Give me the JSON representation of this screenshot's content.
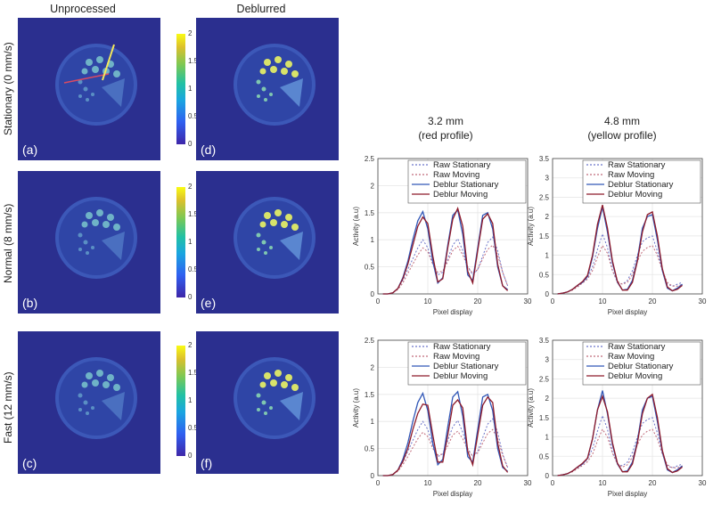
{
  "headers": {
    "unprocessed": "Unprocessed",
    "deblurred": "Deblurred",
    "col1": [
      "3.2 mm",
      "(red profile)"
    ],
    "col2": [
      "4.8 mm",
      "(yellow profile)"
    ]
  },
  "row_labels": [
    "Stationary  (0 mm/s)",
    "Normal (8 mm/s)",
    "Fast (12 mm/s)"
  ],
  "panel_letters": [
    "(a)",
    "(b)",
    "(c)",
    "(d)",
    "(e)",
    "(f)"
  ],
  "colorbar": {
    "ticks": [
      "2",
      "1.5",
      "1",
      "0.5",
      "0"
    ],
    "colors": [
      "#3e26a8",
      "#2f5ff0",
      "#1aa6e0",
      "#21c1a4",
      "#7cc854",
      "#dcc02c",
      "#f9fb14"
    ]
  },
  "series_styles": [
    {
      "name": "Raw Stationary",
      "color": "#6b74c9",
      "dash": "2,2"
    },
    {
      "name": "Raw Moving",
      "color": "#c06a7a",
      "dash": "2,2"
    },
    {
      "name": "Deblur Stationary",
      "color": "#3157b7",
      "dash": ""
    },
    {
      "name": "Deblur Moving",
      "color": "#8e1a2a",
      "dash": ""
    }
  ],
  "chart_data": [
    {
      "type": "line",
      "xlabel": "Pixel display",
      "ylabel": "Activity (a.u)",
      "xlim": [
        0,
        30
      ],
      "ylim": [
        0,
        2.5
      ],
      "xticks": [
        "0",
        "10",
        "20",
        "30"
      ],
      "yticks": [
        "0",
        "0.5",
        "1",
        "1.5",
        "2",
        "2.5"
      ],
      "x": [
        1,
        2,
        3,
        4,
        5,
        6,
        7,
        8,
        9,
        10,
        11,
        12,
        13,
        14,
        15,
        16,
        17,
        18,
        19,
        20,
        21,
        22,
        23,
        24,
        25,
        26
      ],
      "series": [
        {
          "name": "Raw Stationary",
          "values": [
            0,
            0,
            0.02,
            0.1,
            0.25,
            0.45,
            0.65,
            0.85,
            1.0,
            0.85,
            0.55,
            0.35,
            0.4,
            0.65,
            0.9,
            1.02,
            0.8,
            0.5,
            0.35,
            0.45,
            0.7,
            0.95,
            1.05,
            0.8,
            0.4,
            0.15
          ]
        },
        {
          "name": "Raw Moving",
          "values": [
            0,
            0,
            0.02,
            0.08,
            0.2,
            0.38,
            0.55,
            0.72,
            0.85,
            0.78,
            0.55,
            0.4,
            0.42,
            0.6,
            0.8,
            0.88,
            0.72,
            0.5,
            0.38,
            0.45,
            0.65,
            0.82,
            0.9,
            0.72,
            0.4,
            0.15
          ]
        },
        {
          "name": "Deblur Stationary",
          "values": [
            0,
            0,
            0.02,
            0.1,
            0.3,
            0.6,
            1.0,
            1.35,
            1.52,
            1.2,
            0.6,
            0.2,
            0.3,
            0.9,
            1.45,
            1.55,
            1.1,
            0.35,
            0.25,
            0.85,
            1.45,
            1.5,
            1.2,
            0.5,
            0.15,
            0.08
          ]
        },
        {
          "name": "Deblur Moving",
          "values": [
            0,
            0,
            0.02,
            0.1,
            0.28,
            0.55,
            0.9,
            1.25,
            1.42,
            1.3,
            0.7,
            0.22,
            0.28,
            0.85,
            1.38,
            1.58,
            1.25,
            0.42,
            0.2,
            0.8,
            1.38,
            1.48,
            1.3,
            0.55,
            0.15,
            0.06
          ]
        }
      ]
    },
    {
      "type": "line",
      "xlabel": "Pixel display",
      "ylabel": "Activity (a.u)",
      "xlim": [
        0,
        30
      ],
      "ylim": [
        0,
        3.5
      ],
      "xticks": [
        "0",
        "10",
        "20",
        "30"
      ],
      "yticks": [
        "0",
        "0.5",
        "1",
        "1.5",
        "2",
        "2.5",
        "3",
        "3.5"
      ],
      "x": [
        1,
        2,
        3,
        4,
        5,
        6,
        7,
        8,
        9,
        10,
        11,
        12,
        13,
        14,
        15,
        16,
        17,
        18,
        19,
        20,
        21,
        22,
        23,
        24,
        25,
        26
      ],
      "series": [
        {
          "name": "Raw Stationary",
          "values": [
            0,
            0.02,
            0.05,
            0.12,
            0.2,
            0.3,
            0.42,
            0.7,
            1.15,
            1.55,
            1.2,
            0.6,
            0.3,
            0.25,
            0.35,
            0.6,
            1.0,
            1.35,
            1.45,
            1.5,
            1.1,
            0.6,
            0.25,
            0.2,
            0.25,
            0.3
          ]
        },
        {
          "name": "Raw Moving",
          "values": [
            0,
            0.02,
            0.05,
            0.1,
            0.18,
            0.28,
            0.38,
            0.6,
            0.95,
            1.25,
            1.05,
            0.6,
            0.32,
            0.25,
            0.3,
            0.5,
            0.85,
            1.1,
            1.2,
            1.25,
            1.0,
            0.6,
            0.3,
            0.2,
            0.2,
            0.25
          ]
        },
        {
          "name": "Deblur Stationary",
          "values": [
            0,
            0.02,
            0.05,
            0.12,
            0.22,
            0.3,
            0.45,
            0.95,
            1.7,
            2.25,
            1.6,
            0.8,
            0.3,
            0.1,
            0.12,
            0.35,
            0.9,
            1.7,
            2.0,
            2.05,
            1.4,
            0.6,
            0.15,
            0.08,
            0.15,
            0.25
          ]
        },
        {
          "name": "Deblur Moving",
          "values": [
            0,
            0.02,
            0.05,
            0.12,
            0.22,
            0.32,
            0.48,
            1.0,
            1.8,
            2.3,
            1.7,
            0.85,
            0.32,
            0.1,
            0.1,
            0.3,
            0.85,
            1.6,
            2.05,
            2.12,
            1.5,
            0.65,
            0.18,
            0.08,
            0.12,
            0.22
          ]
        }
      ]
    },
    {
      "type": "line",
      "xlabel": "Pixel display",
      "ylabel": "Activity (a.u)",
      "xlim": [
        0,
        30
      ],
      "ylim": [
        0,
        2.5
      ],
      "xticks": [
        "0",
        "10",
        "20",
        "30"
      ],
      "yticks": [
        "0",
        "0.5",
        "1",
        "1.5",
        "2",
        "2.5"
      ],
      "x": [
        1,
        2,
        3,
        4,
        5,
        6,
        7,
        8,
        9,
        10,
        11,
        12,
        13,
        14,
        15,
        16,
        17,
        18,
        19,
        20,
        21,
        22,
        23,
        24,
        25,
        26
      ],
      "series": [
        {
          "name": "Raw Stationary",
          "values": [
            0,
            0,
            0.02,
            0.1,
            0.25,
            0.45,
            0.65,
            0.85,
            1.0,
            0.85,
            0.55,
            0.35,
            0.4,
            0.65,
            0.9,
            1.02,
            0.8,
            0.5,
            0.35,
            0.45,
            0.7,
            0.95,
            1.05,
            0.8,
            0.4,
            0.15
          ]
        },
        {
          "name": "Raw Moving",
          "values": [
            0,
            0,
            0.02,
            0.08,
            0.2,
            0.35,
            0.52,
            0.68,
            0.8,
            0.72,
            0.5,
            0.38,
            0.4,
            0.55,
            0.75,
            0.82,
            0.68,
            0.48,
            0.36,
            0.42,
            0.6,
            0.78,
            0.85,
            0.68,
            0.38,
            0.14
          ]
        },
        {
          "name": "Deblur Stationary",
          "values": [
            0,
            0,
            0.02,
            0.1,
            0.3,
            0.6,
            1.0,
            1.35,
            1.52,
            1.2,
            0.6,
            0.2,
            0.3,
            0.9,
            1.45,
            1.55,
            1.1,
            0.35,
            0.25,
            0.85,
            1.45,
            1.5,
            1.2,
            0.5,
            0.15,
            0.08
          ]
        },
        {
          "name": "Deblur Moving",
          "values": [
            0,
            0,
            0.02,
            0.1,
            0.26,
            0.5,
            0.85,
            1.15,
            1.32,
            1.3,
            0.75,
            0.25,
            0.25,
            0.75,
            1.3,
            1.4,
            1.25,
            0.45,
            0.2,
            0.75,
            1.3,
            1.45,
            1.35,
            0.6,
            0.18,
            0.06
          ]
        }
      ]
    },
    {
      "type": "line",
      "xlabel": "Pixel display",
      "ylabel": "Activity (a.u)",
      "xlim": [
        0,
        30
      ],
      "ylim": [
        0,
        3.5
      ],
      "xticks": [
        "0",
        "10",
        "20",
        "30"
      ],
      "yticks": [
        "0",
        "0.5",
        "1",
        "1.5",
        "2",
        "2.5",
        "3",
        "3.5"
      ],
      "x": [
        1,
        2,
        3,
        4,
        5,
        6,
        7,
        8,
        9,
        10,
        11,
        12,
        13,
        14,
        15,
        16,
        17,
        18,
        19,
        20,
        21,
        22,
        23,
        24,
        25,
        26
      ],
      "series": [
        {
          "name": "Raw Stationary",
          "values": [
            0,
            0.02,
            0.05,
            0.12,
            0.2,
            0.3,
            0.42,
            0.7,
            1.15,
            1.55,
            1.2,
            0.6,
            0.3,
            0.25,
            0.35,
            0.6,
            1.0,
            1.35,
            1.45,
            1.5,
            1.1,
            0.6,
            0.25,
            0.2,
            0.25,
            0.3
          ]
        },
        {
          "name": "Raw Moving",
          "values": [
            0,
            0.02,
            0.05,
            0.1,
            0.18,
            0.26,
            0.36,
            0.55,
            0.9,
            1.2,
            1.0,
            0.58,
            0.3,
            0.22,
            0.28,
            0.48,
            0.8,
            1.05,
            1.15,
            1.2,
            0.95,
            0.55,
            0.28,
            0.2,
            0.2,
            0.25
          ]
        },
        {
          "name": "Deblur Stationary",
          "values": [
            0,
            0.02,
            0.05,
            0.12,
            0.22,
            0.3,
            0.45,
            0.95,
            1.7,
            2.2,
            1.6,
            0.8,
            0.3,
            0.1,
            0.12,
            0.35,
            0.9,
            1.7,
            2.0,
            2.05,
            1.4,
            0.6,
            0.15,
            0.08,
            0.15,
            0.25
          ]
        },
        {
          "name": "Deblur Moving",
          "values": [
            0,
            0.02,
            0.05,
            0.12,
            0.22,
            0.32,
            0.45,
            0.95,
            1.7,
            2.05,
            1.65,
            0.85,
            0.32,
            0.1,
            0.1,
            0.3,
            0.85,
            1.6,
            2.0,
            2.1,
            1.5,
            0.65,
            0.18,
            0.08,
            0.12,
            0.22
          ]
        }
      ]
    }
  ]
}
